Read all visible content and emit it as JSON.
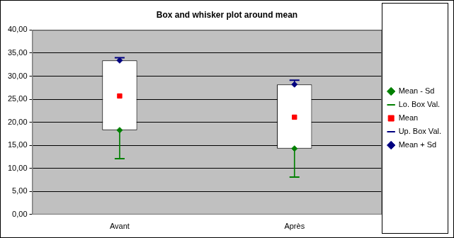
{
  "chart_data": {
    "type": "box",
    "title": "Box and whisker plot around mean",
    "categories": [
      "Avant",
      "Après"
    ],
    "series": [
      {
        "name": "Mean - Sd",
        "color": "#008000",
        "marker": "diamond",
        "values": [
          18.3,
          14.3
        ]
      },
      {
        "name": "Lo. Box Val.",
        "color": "#008000",
        "marker": "dash",
        "values": [
          12.1,
          8.1
        ]
      },
      {
        "name": "Mean",
        "color": "#ff0000",
        "marker": "square",
        "values": [
          25.7,
          21.1
        ]
      },
      {
        "name": "Up. Box Val.",
        "color": "#000080",
        "marker": "dash",
        "values": [
          34.0,
          29.1
        ]
      },
      {
        "name": "Mean + Sd",
        "color": "#000080",
        "marker": "diamond",
        "values": [
          33.4,
          28.2
        ]
      }
    ],
    "ylim": [
      0,
      40
    ],
    "yticks": [
      {
        "value": 0,
        "label": "0,00"
      },
      {
        "value": 5,
        "label": "5,00"
      },
      {
        "value": 10,
        "label": "10,00"
      },
      {
        "value": 15,
        "label": "15,00"
      },
      {
        "value": 20,
        "label": "20,00"
      },
      {
        "value": 25,
        "label": "25,00"
      },
      {
        "value": 30,
        "label": "30,00"
      },
      {
        "value": 35,
        "label": "35,00"
      },
      {
        "value": 40,
        "label": "40,00"
      }
    ],
    "grid": true,
    "legend": "right"
  }
}
